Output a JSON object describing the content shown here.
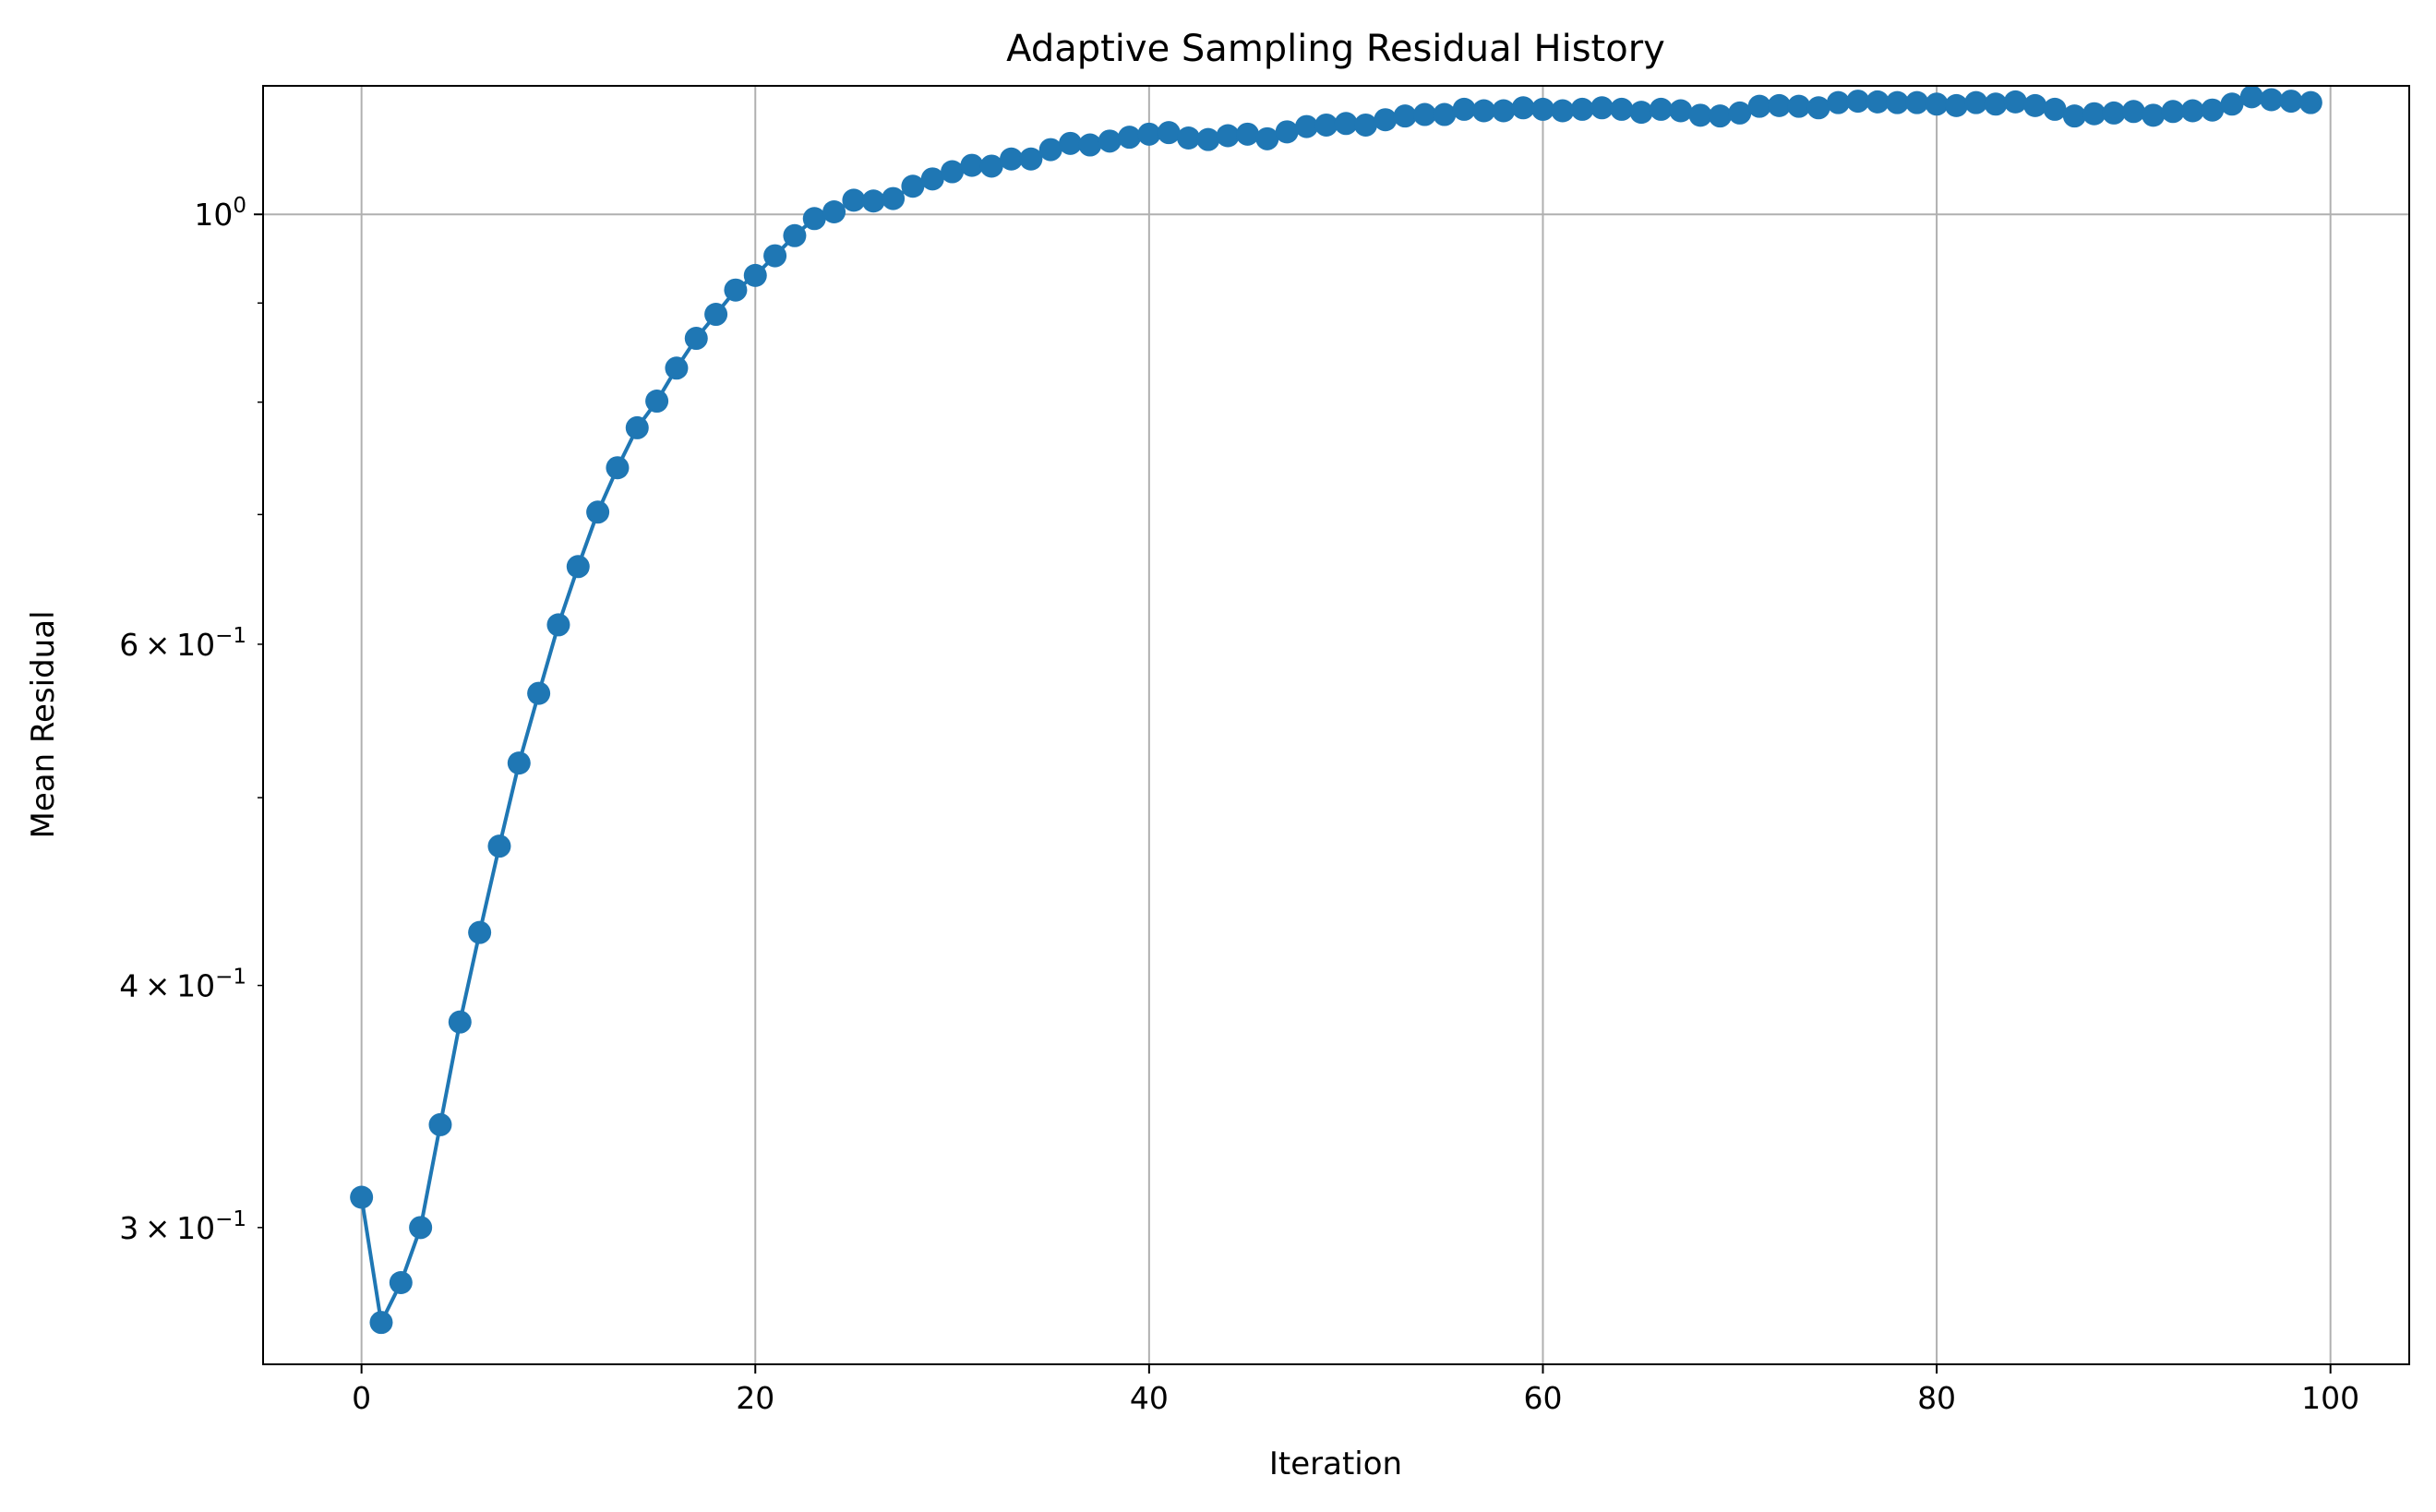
{
  "chart_data": {
    "type": "line",
    "title": "Adaptive Sampling Residual History",
    "xlabel": "Iteration",
    "ylabel": "Mean Residual",
    "yscale": "log",
    "xlim": [
      -5,
      104
    ],
    "ylim": [
      0.255,
      1.165
    ],
    "grid": true,
    "color": "#1f77b4",
    "marker": "circle",
    "x_ticks": [
      {
        "value": 0,
        "label": "0"
      },
      {
        "value": 20,
        "label": "20"
      },
      {
        "value": 40,
        "label": "40"
      },
      {
        "value": 60,
        "label": "60"
      },
      {
        "value": 80,
        "label": "80"
      },
      {
        "value": 100,
        "label": "100"
      }
    ],
    "y_major_ticks": [
      {
        "value": 1.0,
        "base": "10",
        "exp": "0"
      }
    ],
    "y_minor_ticks": [
      {
        "value": 0.3,
        "mant": "3",
        "base": "10",
        "exp": "−1"
      },
      {
        "value": 0.4,
        "mant": "4",
        "base": "10",
        "exp": "−1"
      },
      {
        "value": 0.6,
        "mant": "6",
        "base": "10",
        "exp": "−1"
      },
      {
        "value": 0.5,
        "mant": "",
        "base": "",
        "exp": ""
      },
      {
        "value": 0.7,
        "mant": "",
        "base": "",
        "exp": ""
      },
      {
        "value": 0.8,
        "mant": "",
        "base": "",
        "exp": ""
      },
      {
        "value": 0.9,
        "mant": "",
        "base": "",
        "exp": ""
      }
    ],
    "x": [
      0,
      1,
      2,
      3,
      4,
      5,
      6,
      7,
      8,
      9,
      10,
      11,
      12,
      13,
      14,
      15,
      16,
      17,
      18,
      19,
      20,
      21,
      22,
      23,
      24,
      25,
      26,
      27,
      28,
      29,
      30,
      31,
      32,
      33,
      34,
      35,
      36,
      37,
      38,
      39,
      40,
      41,
      42,
      43,
      44,
      45,
      46,
      47,
      48,
      49,
      50,
      51,
      52,
      53,
      54,
      55,
      56,
      57,
      58,
      59,
      60,
      61,
      62,
      63,
      64,
      65,
      66,
      67,
      68,
      69,
      70,
      71,
      72,
      73,
      74,
      75,
      76,
      77,
      78,
      79,
      80,
      81,
      82,
      83,
      84,
      85,
      86,
      87,
      88,
      89,
      90,
      91,
      92,
      93,
      94,
      95,
      96,
      97,
      98,
      99
    ],
    "series": [
      {
        "name": "",
        "values": [
          0.311,
          0.268,
          0.281,
          0.3,
          0.339,
          0.383,
          0.426,
          0.472,
          0.521,
          0.566,
          0.614,
          0.658,
          0.702,
          0.74,
          0.776,
          0.801,
          0.833,
          0.863,
          0.888,
          0.914,
          0.93,
          0.952,
          0.975,
          0.995,
          1.003,
          1.017,
          1.016,
          1.019,
          1.034,
          1.043,
          1.052,
          1.06,
          1.059,
          1.068,
          1.068,
          1.08,
          1.088,
          1.086,
          1.091,
          1.096,
          1.1,
          1.102,
          1.095,
          1.093,
          1.098,
          1.1,
          1.094,
          1.103,
          1.11,
          1.112,
          1.114,
          1.112,
          1.119,
          1.124,
          1.126,
          1.126,
          1.133,
          1.131,
          1.131,
          1.135,
          1.133,
          1.131,
          1.133,
          1.135,
          1.133,
          1.129,
          1.133,
          1.131,
          1.125,
          1.124,
          1.128,
          1.137,
          1.138,
          1.137,
          1.135,
          1.142,
          1.144,
          1.143,
          1.142,
          1.142,
          1.14,
          1.138,
          1.142,
          1.14,
          1.143,
          1.138,
          1.133,
          1.124,
          1.127,
          1.128,
          1.13,
          1.125,
          1.13,
          1.131,
          1.132,
          1.14,
          1.15,
          1.146,
          1.144,
          1.142
        ]
      }
    ]
  }
}
